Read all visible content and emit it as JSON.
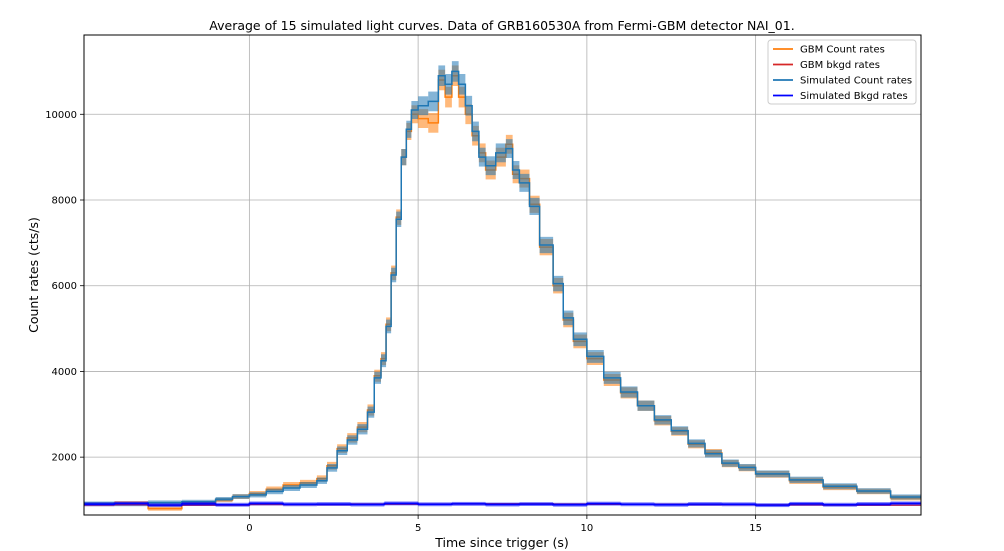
{
  "chart_data": {
    "type": "line",
    "title": "Average of 15 simulated light curves. Data of GRB160530A from Fermi-GBM detector NAI_01.",
    "xlabel": "Time since trigger (s)",
    "ylabel": "Count rates (cts/s)",
    "xlim": [
      -4.9,
      19.9
    ],
    "ylim": [
      650,
      11850
    ],
    "xticks": [
      0,
      5,
      10,
      15
    ],
    "yticks": [
      2000,
      4000,
      6000,
      8000,
      10000
    ],
    "grid": true,
    "legend_position": "top-right",
    "colors": {
      "gbm_counts": "#ff7f0e",
      "gbm_bkgd": "#d62728",
      "sim_counts": "#1f77b4",
      "sim_bkgd": "#0000ff"
    },
    "legend": [
      {
        "label": "GBM Count rates",
        "color": "#ff7f0e"
      },
      {
        "label": "GBM bkgd rates",
        "color": "#d62728"
      },
      {
        "label": "Simulated Count rates",
        "color": "#1f77b4"
      },
      {
        "label": "Simulated Bkgd rates",
        "color": "#0000ff"
      }
    ],
    "step": "post",
    "series": [
      {
        "name": "GBM Count rates",
        "key": "gbm_counts",
        "x": [
          -4.9,
          -4,
          -3,
          -2,
          -1,
          -0.5,
          0,
          0.5,
          1,
          1.5,
          2,
          2.3,
          2.6,
          2.9,
          3.2,
          3.5,
          3.7,
          3.9,
          4.05,
          4.2,
          4.35,
          4.5,
          4.65,
          4.8,
          5,
          5.3,
          5.6,
          5.8,
          6,
          6.2,
          6.4,
          6.6,
          6.8,
          7,
          7.3,
          7.6,
          7.8,
          8,
          8.3,
          8.6,
          9,
          9.3,
          9.6,
          10,
          10.5,
          11,
          11.5,
          12,
          12.5,
          13,
          13.5,
          14,
          14.5,
          15,
          16,
          17,
          18,
          19
        ],
        "y": [
          900,
          930,
          800,
          920,
          1000,
          1080,
          1150,
          1250,
          1350,
          1400,
          1500,
          1800,
          2200,
          2450,
          2700,
          3100,
          3900,
          4300,
          5100,
          6300,
          7600,
          9000,
          9600,
          10000,
          9900,
          9800,
          10800,
          10400,
          10900,
          10400,
          10000,
          9500,
          9100,
          8700,
          9000,
          9300,
          8600,
          8500,
          7900,
          6900,
          6000,
          5200,
          4700,
          4300,
          3800,
          3500,
          3200,
          2850,
          2600,
          2300,
          2100,
          1850,
          1750,
          1600,
          1450,
          1300,
          1200,
          1050
        ],
        "error": [
          45,
          45,
          50,
          45,
          50,
          55,
          60,
          65,
          70,
          70,
          75,
          90,
          100,
          110,
          120,
          130,
          140,
          150,
          160,
          170,
          180,
          190,
          200,
          210,
          220,
          230,
          240,
          240,
          240,
          240,
          230,
          230,
          220,
          220,
          220,
          220,
          210,
          210,
          200,
          190,
          180,
          170,
          160,
          150,
          140,
          130,
          120,
          110,
          100,
          95,
          90,
          85,
          80,
          80,
          75,
          70,
          65,
          60
        ]
      },
      {
        "name": "Simulated Count rates",
        "key": "sim_counts",
        "x": [
          -4.9,
          -4,
          -3,
          -2,
          -1,
          -0.5,
          0,
          0.5,
          1,
          1.5,
          2,
          2.3,
          2.6,
          2.9,
          3.2,
          3.5,
          3.7,
          3.9,
          4.05,
          4.2,
          4.35,
          4.5,
          4.65,
          4.8,
          5,
          5.3,
          5.6,
          5.8,
          6,
          6.2,
          6.4,
          6.6,
          6.8,
          7,
          7.3,
          7.6,
          7.8,
          8,
          8.3,
          8.6,
          9,
          9.3,
          9.6,
          10,
          10.5,
          11,
          11.5,
          12,
          12.5,
          13,
          13.5,
          14,
          14.5,
          15,
          16,
          17,
          18,
          19
        ],
        "y": [
          920,
          900,
          940,
          960,
          1020,
          1080,
          1120,
          1200,
          1280,
          1350,
          1450,
          1750,
          2150,
          2400,
          2650,
          3050,
          3850,
          4250,
          5050,
          6250,
          7550,
          9000,
          9650,
          10100,
          10200,
          10300,
          10900,
          10700,
          11000,
          10700,
          10200,
          9600,
          9000,
          8800,
          9100,
          9200,
          8700,
          8400,
          7850,
          6950,
          6050,
          5250,
          4750,
          4350,
          3850,
          3520,
          3200,
          2870,
          2620,
          2320,
          2080,
          1860,
          1760,
          1610,
          1470,
          1320,
          1210,
          1070
        ],
        "error": [
          45,
          45,
          50,
          45,
          50,
          55,
          60,
          65,
          70,
          70,
          75,
          90,
          100,
          110,
          120,
          130,
          140,
          150,
          160,
          170,
          180,
          190,
          200,
          210,
          220,
          230,
          240,
          240,
          240,
          240,
          230,
          230,
          220,
          220,
          220,
          220,
          210,
          210,
          200,
          190,
          180,
          170,
          160,
          150,
          140,
          130,
          120,
          110,
          100,
          95,
          90,
          85,
          80,
          80,
          75,
          70,
          65,
          60
        ]
      },
      {
        "name": "GBM bkgd rates",
        "key": "gbm_bkgd",
        "x": [
          -4.9,
          -3,
          0,
          3,
          6,
          9,
          12,
          15,
          17,
          19.9
        ],
        "y": [
          890,
          880,
          895,
          905,
          910,
          900,
          895,
          885,
          880,
          890
        ],
        "error": [
          0,
          0,
          0,
          0,
          0,
          0,
          0,
          0,
          0,
          0
        ]
      },
      {
        "name": "Simulated Bkgd rates",
        "key": "sim_bkgd",
        "x": [
          -4.9,
          -4,
          -3,
          -2,
          -1,
          0,
          1,
          2,
          3,
          4,
          5,
          6,
          7,
          8,
          9,
          10,
          11,
          12,
          13,
          14,
          15,
          16,
          17,
          18,
          19
        ],
        "y": [
          900,
          920,
          880,
          910,
          890,
          920,
          900,
          905,
          895,
          920,
          900,
          910,
          895,
          905,
          890,
          915,
          900,
          890,
          905,
          900,
          880,
          910,
          890,
          905,
          920
        ],
        "error": [
          45,
          45,
          45,
          45,
          45,
          45,
          45,
          45,
          45,
          45,
          45,
          45,
          45,
          45,
          45,
          45,
          45,
          45,
          45,
          45,
          45,
          45,
          45,
          45,
          45
        ]
      }
    ]
  }
}
